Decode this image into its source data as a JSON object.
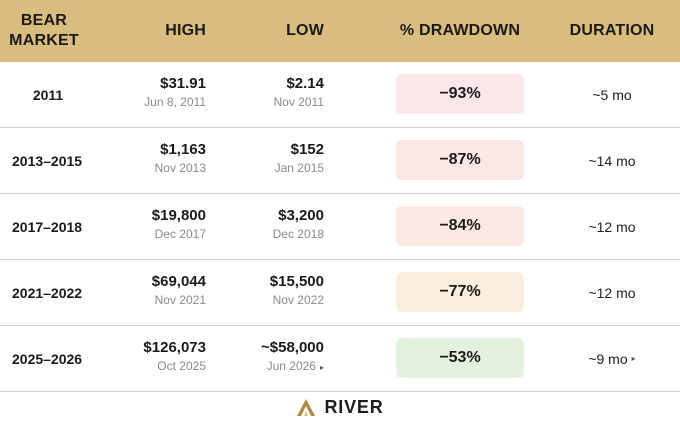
{
  "header": {
    "bear_market": "BEAR MARKET",
    "high": "HIGH",
    "low": "LOW",
    "drawdown": "% DRAWDOWN",
    "duration": "DURATION",
    "background": "#d8bd7f"
  },
  "rows": [
    {
      "period": "2011",
      "high": "$31.91",
      "high_date": "Jun 8, 2011",
      "low": "$2.14",
      "low_date": "Nov 2011",
      "drawdown": "−93%",
      "duration": "~5 mo",
      "pill_color": "#fbe7ea"
    },
    {
      "period": "2013–2015",
      "high": "$1,163",
      "high_date": "Nov 2013",
      "low": "$152",
      "low_date": "Jan 2015",
      "drawdown": "−87%",
      "duration": "~14 mo",
      "pill_color": "#fbe7e5"
    },
    {
      "period": "2017–2018",
      "high": "$19,800",
      "high_date": "Dec 2017",
      "low": "$3,200",
      "low_date": "Dec 2018",
      "drawdown": "−84%",
      "duration": "~12 mo",
      "pill_color": "#fbe9e3"
    },
    {
      "period": "2021–2022",
      "high": "$69,044",
      "high_date": "Nov 2021",
      "low": "$15,500",
      "low_date": "Nov 2022",
      "drawdown": "−77%",
      "duration": "~12 mo",
      "pill_color": "#fbeedc"
    },
    {
      "period": "2025–2026",
      "high": "$126,073",
      "high_date": "Oct 2025",
      "low": "~$58,000",
      "low_date": "Jun 2026",
      "drawdown": "−53%",
      "duration": "~9 mo",
      "pill_color": "#e5f1df"
    }
  ],
  "projection_marker": "▸",
  "footer": {
    "brand": "RIVER",
    "logo_icon": "river-chevron-logo",
    "logo_color": "#b3893d"
  }
}
